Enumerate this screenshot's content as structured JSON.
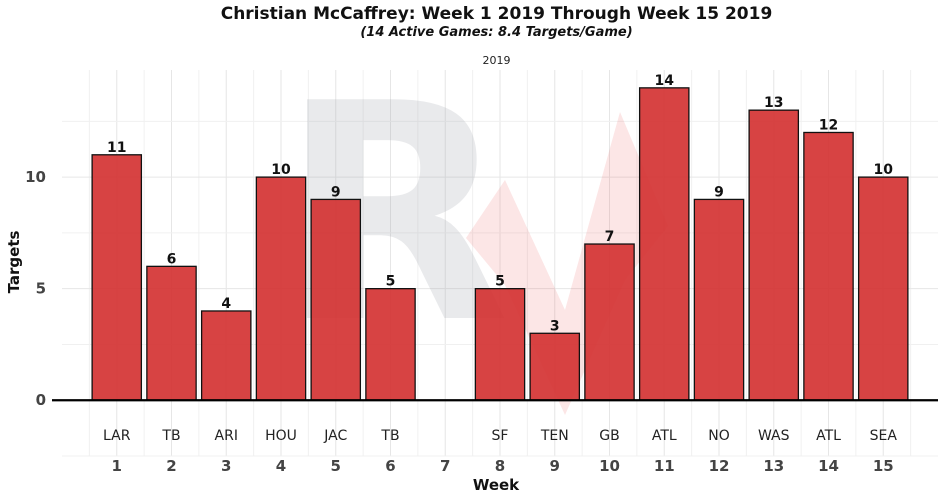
{
  "chart_data": {
    "type": "bar",
    "title": "Christian McCaffrey: Week 1 2019 Through Week 15 2019",
    "subtitle": "(14 Active Games: 8.4 Targets/Game)",
    "facet_label": "2019",
    "xlabel": "Week",
    "ylabel": "Targets",
    "weeks": [
      1,
      2,
      3,
      4,
      5,
      6,
      7,
      8,
      9,
      10,
      11,
      12,
      13,
      14,
      15
    ],
    "opponents": [
      "LAR",
      "TB",
      "ARI",
      "HOU",
      "JAC",
      "TB",
      "",
      "SF",
      "TEN",
      "GB",
      "ATL",
      "NO",
      "WAS",
      "ATL",
      "SEA"
    ],
    "values": [
      11,
      6,
      4,
      10,
      9,
      5,
      null,
      5,
      3,
      7,
      14,
      9,
      13,
      12,
      10
    ],
    "yticks": [
      0,
      5,
      10
    ],
    "ylim": [
      -2.5,
      14.8
    ],
    "xlim": [
      0,
      16
    ],
    "bar_color": "#d32f2f",
    "grid": true,
    "watermark_text": "R"
  }
}
